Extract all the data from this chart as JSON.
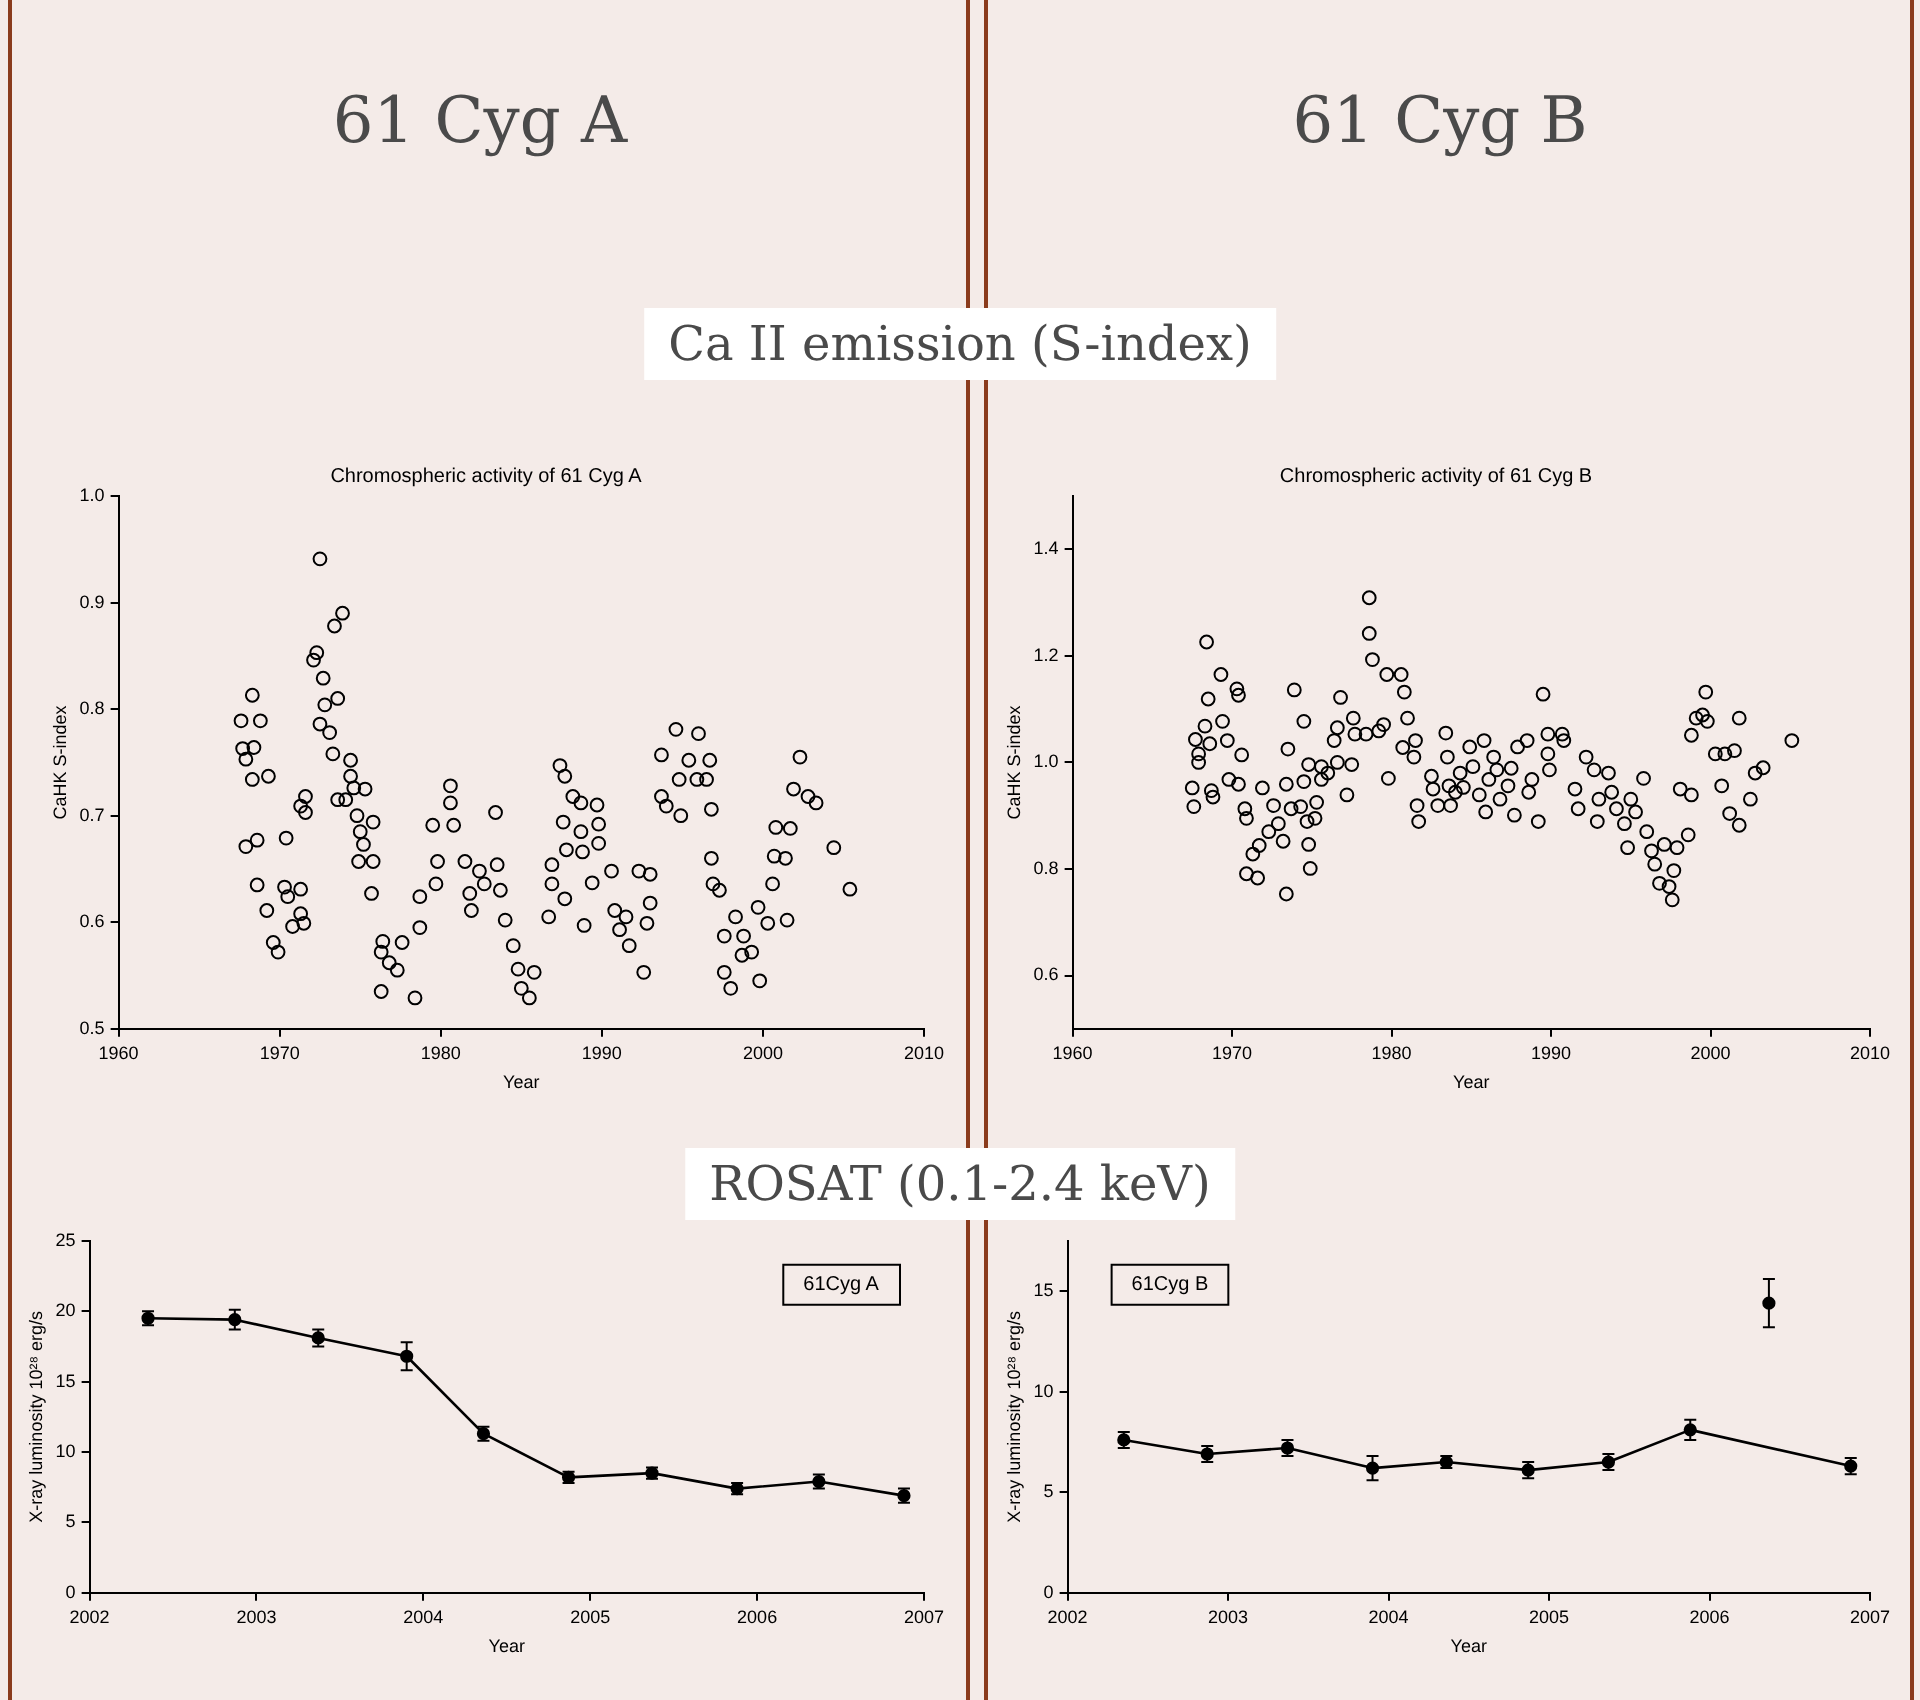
{
  "chart_data": [
    {
      "type": "scatter",
      "title": "Chromospheric activity of 61 Cyg A",
      "xlabel": "Year",
      "ylabel": "CaHK S-index",
      "annotations": [
        "61 Cyg A",
        "Ca II emission (S-index)"
      ],
      "color": "#000000",
      "marker": "circle",
      "xlim": [
        1960,
        2010
      ],
      "xticks": [
        1960,
        1970,
        1980,
        1990,
        2000,
        2010
      ],
      "ylim": [
        0.5,
        1.0
      ],
      "yticks": [
        0.5,
        0.6,
        0.7,
        0.8,
        0.9,
        {
          "value": 1.0,
          "label": "1.0"
        }
      ],
      "x": [
        1967.6,
        1967.7,
        1967.9,
        1968.3,
        1968.4,
        1968.3,
        1968.8,
        1969.3,
        1967.9,
        1968.6,
        1968.6,
        1969.2,
        1969.6,
        1969.9,
        1970.4,
        1970.3,
        1970.5,
        1970.8,
        1971.3,
        1971.3,
        1971.5,
        1971.6,
        1971.6,
        1971.3,
        1972.1,
        1972.3,
        1972.5,
        1972.7,
        1972.8,
        1972.5,
        1973.1,
        1973.4,
        1973.9,
        1973.6,
        1973.3,
        1973.6,
        1974.1,
        1974.4,
        1974.4,
        1974.6,
        1974.8,
        1975.3,
        1975.0,
        1975.2,
        1974.9,
        1975.8,
        1975.8,
        1975.7,
        1976.4,
        1976.3,
        1976.3,
        1976.8,
        1977.3,
        1977.6,
        1978.4,
        1978.7,
        1978.7,
        1979.5,
        1979.8,
        1979.7,
        1980.6,
        1980.6,
        1980.8,
        1981.5,
        1981.8,
        1981.9,
        1982.4,
        1982.7,
        1983.4,
        1983.5,
        1983.7,
        1984.0,
        1984.5,
        1984.8,
        1985.0,
        1985.5,
        1985.8,
        1986.7,
        1986.9,
        1986.9,
        1987.4,
        1987.7,
        1987.6,
        1987.7,
        1987.8,
        1988.2,
        1988.7,
        1988.7,
        1988.8,
        1988.9,
        1989.4,
        1989.7,
        1989.8,
        1989.8,
        1990.6,
        1990.8,
        1991.1,
        1991.5,
        1991.7,
        1992.3,
        1992.6,
        1992.8,
        1993.0,
        1993.0,
        1993.7,
        1993.7,
        1994.0,
        1994.6,
        1994.8,
        1994.9,
        1995.4,
        1995.9,
        1996.0,
        1996.5,
        1996.7,
        1996.8,
        1996.8,
        1996.9,
        1997.3,
        1997.6,
        1997.6,
        1998.0,
        1998.3,
        1998.7,
        1998.8,
        1999.3,
        1999.7,
        1999.8,
        2000.3,
        2000.6,
        2000.8,
        2000.7,
        2001.4,
        2001.5,
        2001.7,
        2001.9,
        2002.3,
        2002.8,
        2003.3,
        2004.4,
        2005.4
      ],
      "values": [
        0.789,
        0.763,
        0.753,
        0.734,
        0.764,
        0.813,
        0.789,
        0.737,
        0.671,
        0.677,
        0.635,
        0.611,
        0.581,
        0.572,
        0.679,
        0.633,
        0.624,
        0.596,
        0.631,
        0.608,
        0.599,
        0.718,
        0.703,
        0.709,
        0.846,
        0.853,
        0.941,
        0.829,
        0.804,
        0.786,
        0.778,
        0.878,
        0.89,
        0.81,
        0.758,
        0.715,
        0.715,
        0.752,
        0.737,
        0.726,
        0.7,
        0.725,
        0.685,
        0.673,
        0.657,
        0.657,
        0.694,
        0.627,
        0.582,
        0.572,
        0.535,
        0.562,
        0.555,
        0.581,
        0.529,
        0.595,
        0.624,
        0.691,
        0.657,
        0.636,
        0.728,
        0.712,
        0.691,
        0.657,
        0.627,
        0.611,
        0.648,
        0.636,
        0.703,
        0.654,
        0.63,
        0.602,
        0.578,
        0.556,
        0.538,
        0.529,
        0.553,
        0.605,
        0.654,
        0.636,
        0.747,
        0.737,
        0.694,
        0.622,
        0.668,
        0.718,
        0.712,
        0.685,
        0.666,
        0.597,
        0.637,
        0.71,
        0.692,
        0.674,
        0.648,
        0.611,
        0.593,
        0.605,
        0.578,
        0.648,
        0.553,
        0.599,
        0.645,
        0.618,
        0.757,
        0.718,
        0.709,
        0.781,
        0.734,
        0.7,
        0.752,
        0.734,
        0.777,
        0.734,
        0.752,
        0.706,
        0.66,
        0.636,
        0.63,
        0.587,
        0.553,
        0.538,
        0.605,
        0.569,
        0.587,
        0.572,
        0.614,
        0.545,
        0.599,
        0.636,
        0.689,
        0.662,
        0.66,
        0.602,
        0.688,
        0.725,
        0.755,
        0.718,
        0.712,
        0.67,
        0.631
      ]
    },
    {
      "type": "scatter",
      "title": "Chromospheric activity of 61 Cyg B",
      "xlabel": "Year",
      "ylabel": "CaHK S-index",
      "annotations": [
        "61 Cyg B"
      ],
      "color": "#000000",
      "marker": "circle",
      "xlim": [
        1960,
        2010
      ],
      "xticks": [
        1960,
        1970,
        1980,
        1990,
        2000,
        2010
      ],
      "ylim": [
        0.5,
        1.5
      ],
      "yticks": [
        0.6,
        0.8,
        {
          "value": 1.0,
          "label": "1.0"
        },
        1.2,
        1.4
      ],
      "x": [
        1967.5,
        1967.6,
        1967.7,
        1967.9,
        1967.9,
        1968.4,
        1968.5,
        1968.3,
        1968.6,
        1968.7,
        1968.8,
        1969.3,
        1969.4,
        1969.7,
        1969.8,
        1970.3,
        1970.4,
        1970.6,
        1970.4,
        1970.8,
        1970.9,
        1970.9,
        1971.3,
        1971.6,
        1971.9,
        1971.7,
        1972.3,
        1972.6,
        1972.9,
        1973.2,
        1973.4,
        1973.5,
        1973.4,
        1973.7,
        1973.9,
        1974.3,
        1974.5,
        1974.5,
        1974.7,
        1974.8,
        1974.8,
        1974.9,
        1975.2,
        1975.3,
        1975.6,
        1975.6,
        1976.0,
        1976.4,
        1976.6,
        1976.8,
        1976.6,
        1977.2,
        1977.5,
        1977.6,
        1977.7,
        1978.4,
        1978.6,
        1978.6,
        1978.8,
        1979.2,
        1979.5,
        1979.8,
        1979.7,
        1980.6,
        1980.8,
        1981.0,
        1980.7,
        1981.5,
        1981.4,
        1981.6,
        1981.7,
        1982.5,
        1982.6,
        1982.9,
        1983.4,
        1983.5,
        1983.6,
        1983.7,
        1984.0,
        1984.3,
        1984.5,
        1984.9,
        1985.1,
        1985.5,
        1985.8,
        1985.9,
        1986.1,
        1986.4,
        1986.6,
        1986.8,
        1987.3,
        1987.5,
        1987.7,
        1987.9,
        1988.5,
        1988.6,
        1988.8,
        1989.2,
        1989.5,
        1989.8,
        1989.9,
        1989.8,
        1990.7,
        1990.8,
        1992.2,
        1991.5,
        1991.7,
        1992.7,
        1992.9,
        1993.0,
        1993.6,
        1993.8,
        1994.1,
        1994.6,
        1994.8,
        1995.0,
        1995.3,
        1995.8,
        1996.0,
        1996.3,
        1996.5,
        1996.8,
        1997.1,
        1997.4,
        1997.6,
        1997.7,
        1997.9,
        1998.1,
        1998.6,
        1998.8,
        1998.8,
        1999.1,
        1999.5,
        1999.7,
        1999.8,
        2000.3,
        2000.7,
        2000.9,
        2001.2,
        2001.5,
        2001.8,
        2001.8,
        2002.5,
        2002.8,
        2003.3,
        2005.1
      ],
      "values": [
        0.952,
        0.917,
        1.043,
        1.016,
        1.0,
        1.226,
        1.119,
        1.068,
        1.035,
        0.947,
        0.935,
        1.165,
        1.077,
        1.041,
        0.968,
        1.138,
        1.126,
        1.014,
        0.959,
        0.913,
        0.895,
        0.791,
        0.828,
        0.783,
        0.952,
        0.844,
        0.87,
        0.919,
        0.885,
        0.852,
        0.753,
        1.025,
        0.959,
        0.913,
        1.136,
        0.917,
        1.077,
        0.964,
        0.889,
        0.996,
        0.846,
        0.801,
        0.895,
        0.925,
        0.968,
        0.992,
        0.98,
        1.041,
        1.065,
        1.122,
        1.0,
        0.939,
        0.996,
        1.083,
        1.053,
        1.053,
        1.309,
        1.242,
        1.193,
        1.059,
        1.071,
        0.97,
        1.165,
        1.165,
        1.132,
        1.083,
        1.028,
        1.041,
        1.01,
        0.919,
        0.889,
        0.974,
        0.95,
        0.919,
        1.055,
        1.01,
        0.956,
        0.919,
        0.944,
        0.98,
        0.953,
        1.029,
        0.992,
        0.939,
        1.041,
        0.907,
        0.968,
        1.01,
        0.986,
        0.931,
        0.956,
        0.989,
        0.901,
        1.029,
        1.041,
        0.944,
        0.968,
        0.889,
        1.128,
        1.016,
        0.986,
        1.053,
        1.053,
        1.041,
        1.01,
        0.95,
        0.913,
        0.986,
        0.889,
        0.931,
        0.98,
        0.944,
        0.913,
        0.885,
        0.84,
        0.931,
        0.907,
        0.97,
        0.87,
        0.834,
        0.809,
        0.773,
        0.846,
        0.767,
        0.742,
        0.797,
        0.84,
        0.95,
        0.864,
        0.939,
        1.051,
        1.083,
        1.089,
        1.132,
        1.077,
        1.016,
        0.956,
        1.016,
        0.904,
        1.022,
        1.083,
        0.882,
        0.931,
        0.98,
        0.99,
        1.041
      ]
    },
    {
      "type": "line",
      "xlabel": "Year",
      "ylabel": "X-ray luminosity 10²⁸ erg/s",
      "annotations": [
        "ROSAT (0.1-2.4 keV)"
      ],
      "marker": "circle",
      "legend": "top right",
      "xlim": [
        2002,
        2007
      ],
      "xticks": [
        2002,
        2003,
        2004,
        2005,
        2006,
        2007
      ],
      "ylim": [
        0,
        25
      ],
      "yticks": [
        0,
        5,
        10,
        15,
        20,
        25
      ],
      "series": [
        {
          "name": "61Cyg A",
          "color": "#000000",
          "x": [
            2002.35,
            2002.87,
            2003.37,
            2003.9,
            2004.36,
            2004.87,
            2005.37,
            2005.88,
            2006.37,
            2006.88
          ],
          "values": [
            19.5,
            19.4,
            18.1,
            16.8,
            11.3,
            8.2,
            8.5,
            7.4,
            7.9,
            6.9
          ],
          "errors": [
            0.5,
            0.7,
            0.6,
            1.0,
            0.5,
            0.4,
            0.4,
            0.4,
            0.5,
            0.5
          ]
        }
      ]
    },
    {
      "type": "line",
      "xlabel": "Year",
      "ylabel": "X-ray luminosity 10²⁸ erg/s",
      "marker": "circle",
      "legend": "top left",
      "xlim": [
        2002,
        2007
      ],
      "xticks": [
        2002,
        2003,
        2004,
        2005,
        2006,
        2007
      ],
      "ylim": [
        0,
        17.5
      ],
      "yticks": [
        0,
        5,
        10,
        15
      ],
      "series": [
        {
          "name": "61Cyg B",
          "color": "#000000",
          "x": [
            2002.35,
            2002.87,
            2003.37,
            2003.9,
            2004.36,
            2004.87,
            2005.37,
            2005.88,
            2006.88
          ],
          "values": [
            7.6,
            6.9,
            7.2,
            6.2,
            6.5,
            6.1,
            6.5,
            8.1,
            6.3
          ],
          "errors": [
            0.4,
            0.4,
            0.4,
            0.6,
            0.3,
            0.4,
            0.4,
            0.5,
            0.4
          ]
        },
        {
          "color": "#000000",
          "x": [
            2006.37
          ],
          "values": [
            14.4
          ],
          "errors": [
            1.2
          ]
        }
      ]
    }
  ]
}
